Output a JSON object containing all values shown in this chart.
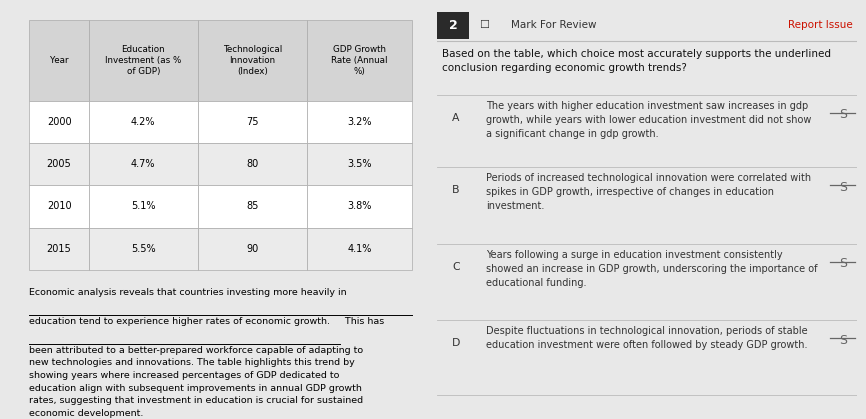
{
  "bg_color": "#e8e8e8",
  "left_bg": "#ffffff",
  "right_bg": "#f0f0f0",
  "table_headers": [
    "Year",
    "Education\nInvestment (as %\nof GDP)",
    "Technological\nInnovation\n(Index)",
    "GDP Growth\nRate (Annual\n%)"
  ],
  "table_rows": [
    [
      "2000",
      "4.2%",
      "75",
      "3.2%"
    ],
    [
      "2005",
      "4.7%",
      "80",
      "3.5%"
    ],
    [
      "2010",
      "5.1%",
      "85",
      "3.8%"
    ],
    [
      "2015",
      "5.5%",
      "90",
      "4.1%"
    ]
  ],
  "passage_underlined_line1": "Economic analysis reveals that countries investing more heavily in",
  "passage_underlined_line2": "education tend to experience higher rates of economic growth.",
  "passage_rest": "This has\nbeen attributed to a better-prepared workforce capable of adapting to\nnew technologies and innovations. The table highlights this trend by\nshowing years where increased percentages of GDP dedicated to\neducation align with subsequent improvements in annual GDP growth\nrates, suggesting that investment in education is crucial for sustained\neconomic development.",
  "question_num": "2",
  "question_label": "Mark For Review",
  "question_report": "Report Issue",
  "question_text": "Based on the table, which choice most accurately supports the underlined\nconclusion regarding economic growth trends?",
  "choices": [
    {
      "letter": "A",
      "text": "The years with higher education investment saw increases in gdp\ngrowth, while years with lower education investment did not show\na significant change in gdp growth."
    },
    {
      "letter": "B",
      "text": "Periods of increased technological innovation were correlated with\nspikes in GDP growth, irrespective of changes in education\ninvestment."
    },
    {
      "letter": "C",
      "text": "Years following a surge in education investment consistently\nshowed an increase in GDP growth, underscoring the importance of\neducational funding."
    },
    {
      "letter": "D",
      "text": "Despite fluctuations in technological innovation, periods of stable\neducation investment were often followed by steady GDP growth."
    }
  ],
  "table_header_bg": "#d4d4d4",
  "table_row_colors": [
    "#ffffff",
    "#ebebeb",
    "#ffffff",
    "#ebebeb"
  ],
  "table_border_color": "#aaaaaa",
  "strikethrough_color": "#666666"
}
